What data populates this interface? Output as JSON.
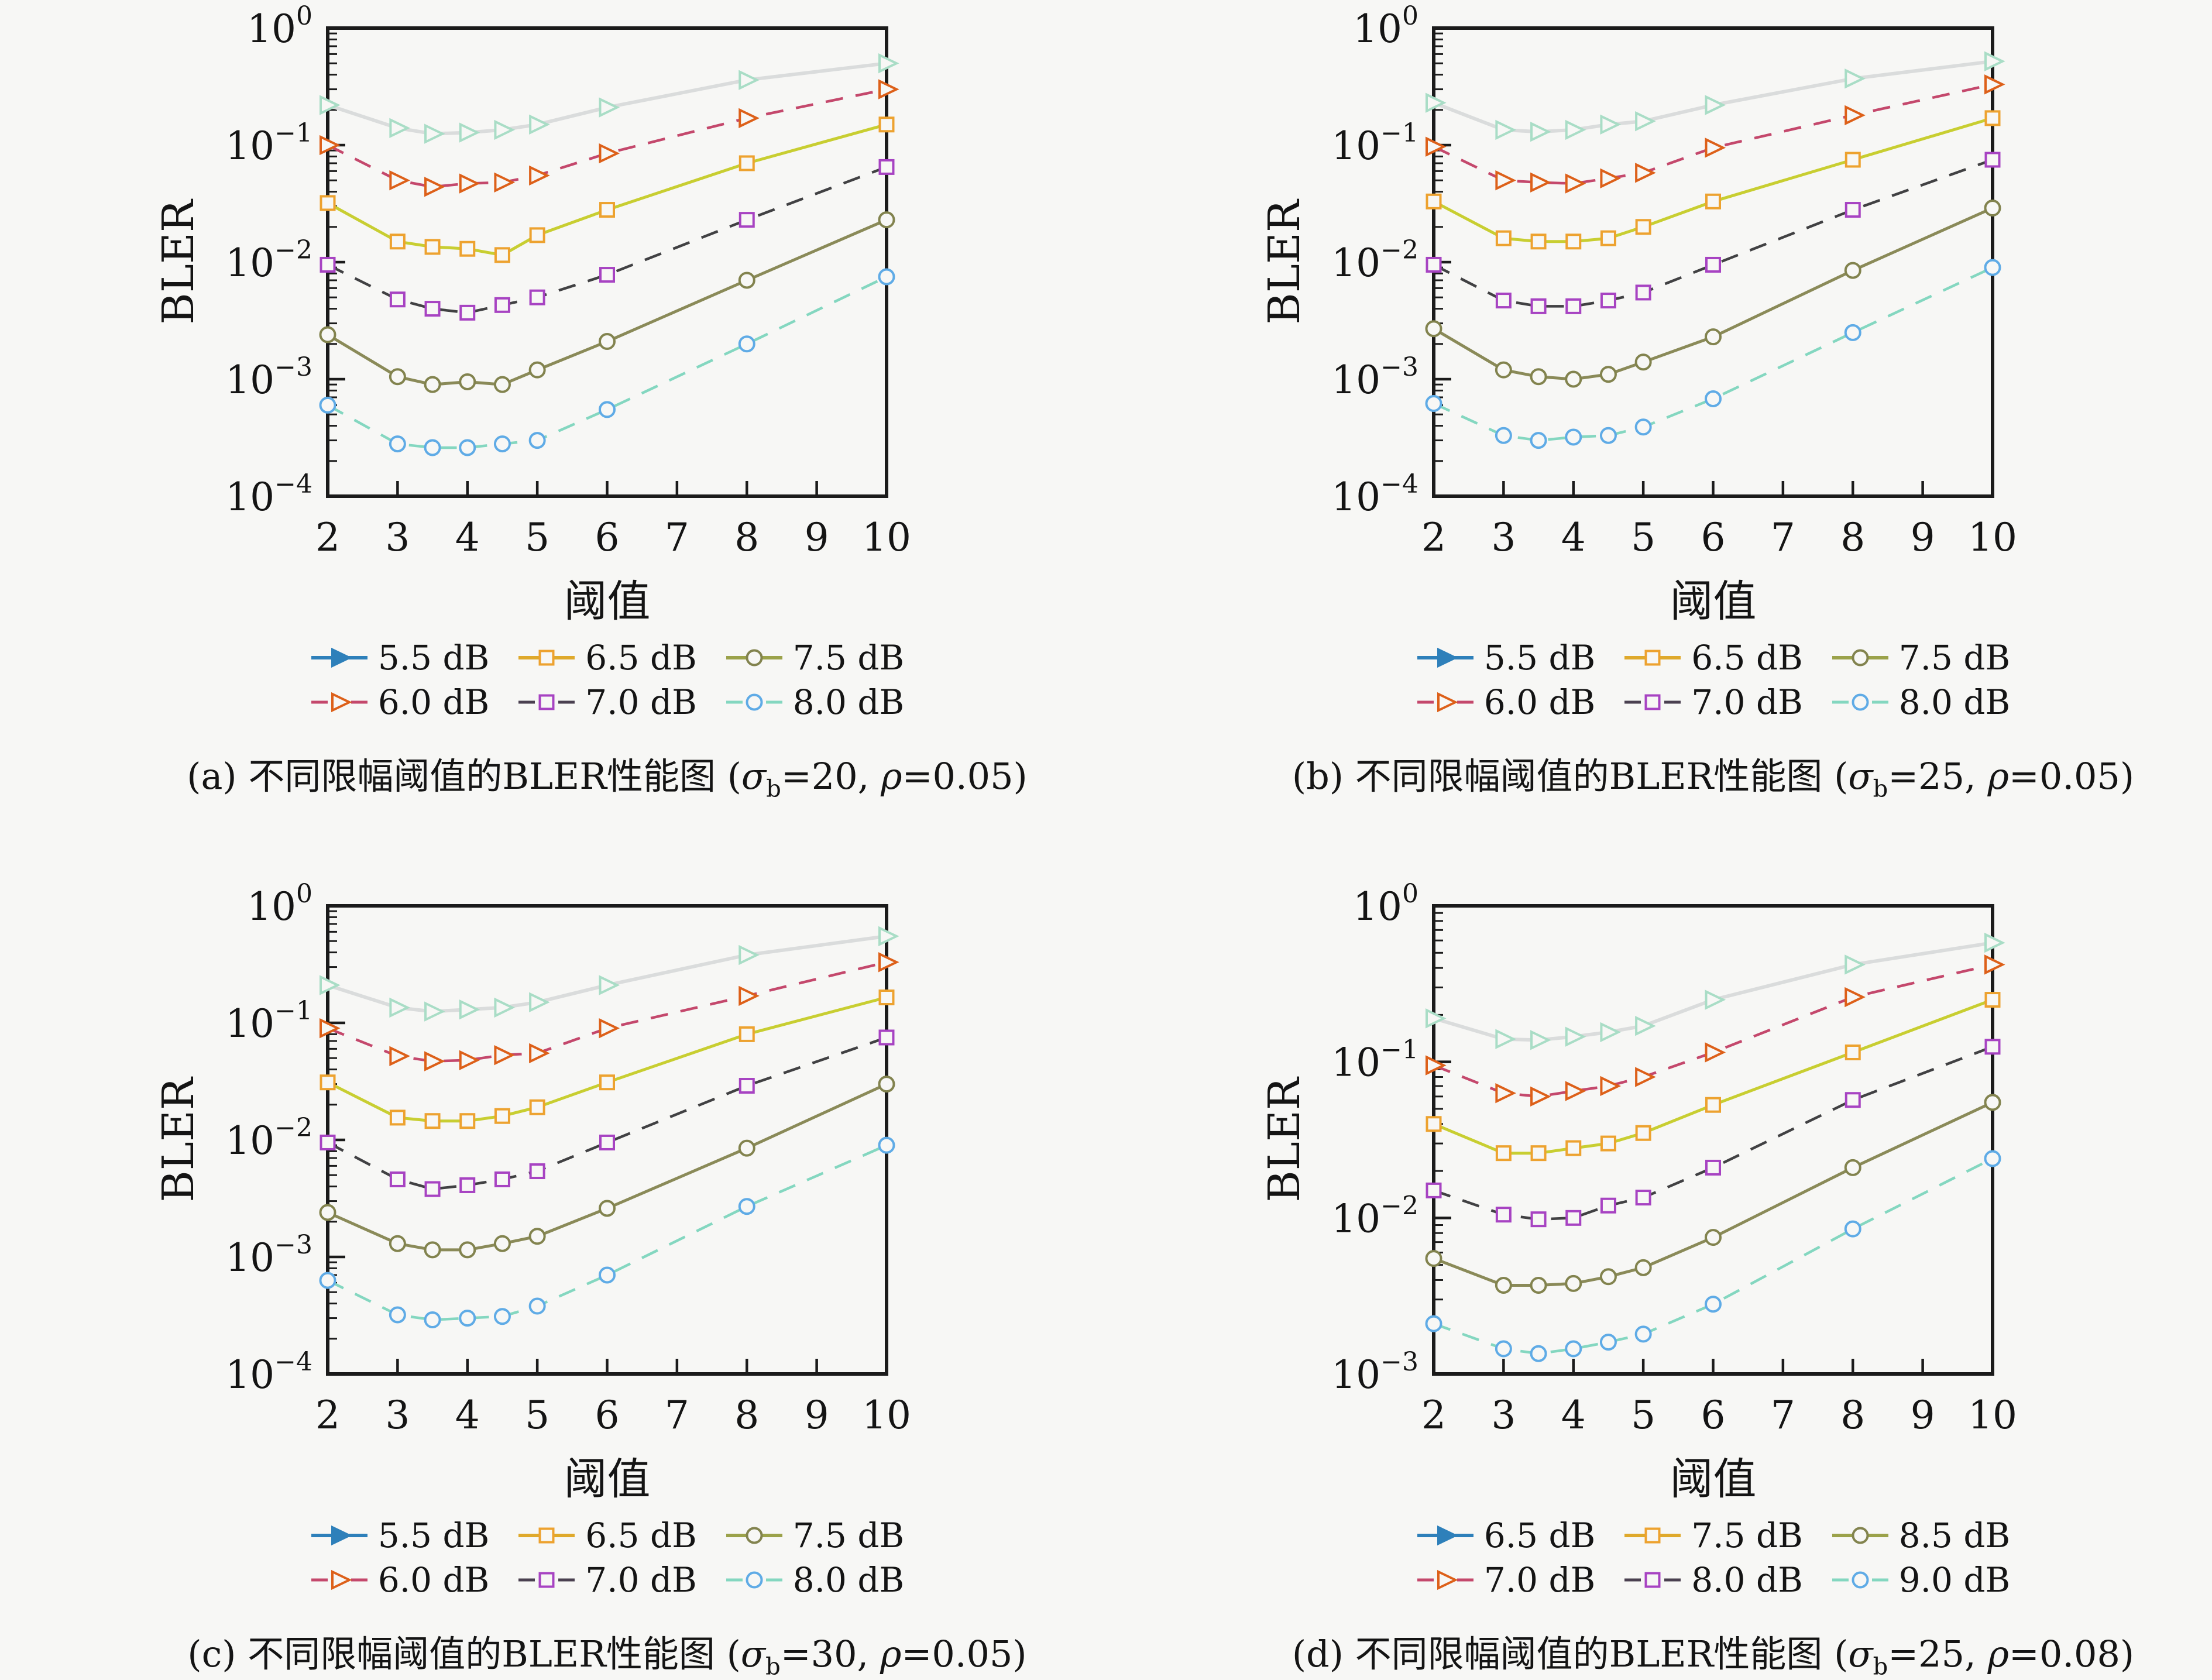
{
  "figure": {
    "background": "#f7f7f5",
    "frame_color": "#1b1b1b",
    "text_color": "#141414"
  },
  "series_styles": {
    "s1": {
      "line_color": "#dadcdc",
      "dashed": false,
      "line_width": 6,
      "marker": "triangle",
      "marker_color": "#a9ddc6",
      "legend_line": "#2e80ba",
      "legend_marker": "#2e80ba",
      "legend_marker_filled": true
    },
    "s2": {
      "line_color": "#c4486c",
      "dashed": true,
      "line_width": 4.5,
      "marker": "triangle",
      "marker_color": "#dd6019",
      "legend_line": "#c4486c",
      "legend_marker": "#dd6019",
      "legend_marker_filled": false
    },
    "s3": {
      "line_color": "#c8ce31",
      "dashed": false,
      "line_width": 5,
      "marker": "square",
      "marker_color": "#eda22f",
      "legend_line": "#dfa92b",
      "legend_marker": "#eda22f",
      "legend_marker_filled": false
    },
    "s4": {
      "line_color": "#414143",
      "dashed": true,
      "line_width": 4.5,
      "marker": "square",
      "marker_color": "#a743c2",
      "legend_line": "#4a4050",
      "legend_marker": "#a743c2",
      "legend_marker_filled": false
    },
    "s5": {
      "line_color": "#8a8a58",
      "dashed": false,
      "line_width": 5,
      "marker": "circle",
      "marker_color": "#82834e",
      "legend_line": "#9ba24a",
      "legend_marker": "#82834e",
      "legend_marker_filled": false
    },
    "s6": {
      "line_color": "#84d7c0",
      "dashed": true,
      "line_width": 4.5,
      "marker": "circle",
      "marker_color": "#5fabe6",
      "legend_line": "#84d7c0",
      "legend_marker": "#5fabe6",
      "legend_marker_filled": false
    }
  },
  "chart_data": [
    {
      "id": "a",
      "type": "line",
      "xlabel": "阈值",
      "ylabel": "BLER",
      "x": [
        2,
        3,
        3.5,
        4,
        4.5,
        5,
        6,
        8,
        10
      ],
      "xticks": [
        2,
        3,
        4,
        5,
        6,
        7,
        8,
        9,
        10
      ],
      "ylim": [
        0.0001,
        1
      ],
      "ytick_exponents": [
        0,
        -1,
        -2,
        -3,
        -4
      ],
      "caption": {
        "index": "(a)",
        "title": "不同限幅阈值的BLER性能图",
        "sigma_sym": "σ",
        "sigma_sub": "b",
        "sigma_val": "20",
        "rho_sym": "ρ",
        "rho_val": "0.05"
      },
      "series": [
        {
          "name": "5.5 dB",
          "style": "s1",
          "values": [
            0.22,
            0.14,
            0.125,
            0.128,
            0.135,
            0.15,
            0.21,
            0.36,
            0.5
          ]
        },
        {
          "name": "6.0 dB",
          "style": "s2",
          "values": [
            0.1,
            0.05,
            0.044,
            0.047,
            0.048,
            0.055,
            0.085,
            0.17,
            0.3
          ]
        },
        {
          "name": "6.5 dB",
          "style": "s3",
          "values": [
            0.032,
            0.015,
            0.0135,
            0.013,
            0.0115,
            0.017,
            0.028,
            0.07,
            0.15
          ]
        },
        {
          "name": "7.0 dB",
          "style": "s4",
          "values": [
            0.0095,
            0.0048,
            0.004,
            0.0037,
            0.0043,
            0.005,
            0.0078,
            0.023,
            0.065
          ]
        },
        {
          "name": "7.5 dB",
          "style": "s5",
          "values": [
            0.0024,
            0.00105,
            0.0009,
            0.00095,
            0.0009,
            0.0012,
            0.0021,
            0.007,
            0.023
          ]
        },
        {
          "name": "8.0 dB",
          "style": "s6",
          "values": [
            0.0006,
            0.00028,
            0.00026,
            0.00026,
            0.00028,
            0.0003,
            0.00055,
            0.002,
            0.0075
          ]
        }
      ]
    },
    {
      "id": "b",
      "type": "line",
      "xlabel": "阈值",
      "ylabel": "BLER",
      "x": [
        2,
        3,
        3.5,
        4,
        4.5,
        5,
        6,
        8,
        10
      ],
      "xticks": [
        2,
        3,
        4,
        5,
        6,
        7,
        8,
        9,
        10
      ],
      "ylim": [
        0.0001,
        1
      ],
      "ytick_exponents": [
        0,
        -1,
        -2,
        -3,
        -4
      ],
      "caption": {
        "index": "(b)",
        "title": "不同限幅阈值的BLER性能图",
        "sigma_sym": "σ",
        "sigma_sub": "b",
        "sigma_val": "25",
        "rho_sym": "ρ",
        "rho_val": "0.05"
      },
      "series": [
        {
          "name": "5.5 dB",
          "style": "s1",
          "values": [
            0.23,
            0.135,
            0.13,
            0.135,
            0.15,
            0.16,
            0.22,
            0.37,
            0.52
          ]
        },
        {
          "name": "6.0 dB",
          "style": "s2",
          "values": [
            0.097,
            0.05,
            0.048,
            0.047,
            0.052,
            0.058,
            0.095,
            0.18,
            0.33
          ]
        },
        {
          "name": "6.5 dB",
          "style": "s3",
          "values": [
            0.033,
            0.016,
            0.015,
            0.015,
            0.016,
            0.02,
            0.033,
            0.075,
            0.17
          ]
        },
        {
          "name": "7.0 dB",
          "style": "s4",
          "values": [
            0.0095,
            0.0047,
            0.0042,
            0.0042,
            0.0047,
            0.0055,
            0.0095,
            0.028,
            0.075
          ]
        },
        {
          "name": "7.5 dB",
          "style": "s5",
          "values": [
            0.0027,
            0.0012,
            0.00105,
            0.001,
            0.0011,
            0.0014,
            0.0023,
            0.0085,
            0.029
          ]
        },
        {
          "name": "8.0 dB",
          "style": "s6",
          "values": [
            0.00062,
            0.00033,
            0.0003,
            0.00032,
            0.00033,
            0.00039,
            0.00068,
            0.0025,
            0.009
          ]
        }
      ]
    },
    {
      "id": "c",
      "type": "line",
      "xlabel": "阈值",
      "ylabel": "BLER",
      "x": [
        2,
        3,
        3.5,
        4,
        4.5,
        5,
        6,
        8,
        10
      ],
      "xticks": [
        2,
        3,
        4,
        5,
        6,
        7,
        8,
        9,
        10
      ],
      "ylim": [
        0.0001,
        1
      ],
      "ytick_exponents": [
        0,
        -1,
        -2,
        -3,
        -4
      ],
      "caption": {
        "index": "(c)",
        "title": "不同限幅阈值的BLER性能图",
        "sigma_sym": "σ",
        "sigma_sub": "b",
        "sigma_val": "30",
        "rho_sym": "ρ",
        "rho_val": "0.05"
      },
      "series": [
        {
          "name": "5.5 dB",
          "style": "s1",
          "values": [
            0.21,
            0.135,
            0.125,
            0.13,
            0.135,
            0.15,
            0.21,
            0.38,
            0.55
          ]
        },
        {
          "name": "6.0 dB",
          "style": "s2",
          "values": [
            0.09,
            0.052,
            0.047,
            0.048,
            0.053,
            0.055,
            0.09,
            0.17,
            0.33
          ]
        },
        {
          "name": "6.5 dB",
          "style": "s3",
          "values": [
            0.031,
            0.0155,
            0.0145,
            0.0145,
            0.016,
            0.019,
            0.031,
            0.08,
            0.165
          ]
        },
        {
          "name": "7.0 dB",
          "style": "s4",
          "values": [
            0.0095,
            0.0046,
            0.0038,
            0.0041,
            0.0046,
            0.0054,
            0.0095,
            0.029,
            0.075
          ]
        },
        {
          "name": "7.5 dB",
          "style": "s5",
          "values": [
            0.0024,
            0.0013,
            0.00115,
            0.00115,
            0.0013,
            0.0015,
            0.0026,
            0.0085,
            0.03
          ]
        },
        {
          "name": "8.0 dB",
          "style": "s6",
          "values": [
            0.00063,
            0.00032,
            0.00029,
            0.0003,
            0.00031,
            0.00038,
            0.0007,
            0.0027,
            0.009
          ]
        }
      ]
    },
    {
      "id": "d",
      "type": "line",
      "xlabel": "阈值",
      "ylabel": "BLER",
      "x": [
        2,
        3,
        3.5,
        4,
        4.5,
        5,
        6,
        8,
        10
      ],
      "xticks": [
        2,
        3,
        4,
        5,
        6,
        7,
        8,
        9,
        10
      ],
      "ylim": [
        0.001,
        1
      ],
      "ytick_exponents": [
        0,
        -1,
        -2,
        -3
      ],
      "caption": {
        "index": "(d)",
        "title": "不同限幅阈值的BLER性能图",
        "sigma_sym": "σ",
        "sigma_sub": "b",
        "sigma_val": "25",
        "rho_sym": "ρ",
        "rho_val": "0.08"
      },
      "series": [
        {
          "name": "6.5 dB",
          "style": "s1",
          "values": [
            0.19,
            0.14,
            0.138,
            0.145,
            0.155,
            0.17,
            0.25,
            0.42,
            0.58
          ]
        },
        {
          "name": "7.0 dB",
          "style": "s2",
          "values": [
            0.095,
            0.063,
            0.06,
            0.065,
            0.07,
            0.08,
            0.115,
            0.26,
            0.42
          ]
        },
        {
          "name": "7.5 dB",
          "style": "s3",
          "values": [
            0.04,
            0.026,
            0.026,
            0.028,
            0.03,
            0.035,
            0.053,
            0.115,
            0.25
          ]
        },
        {
          "name": "8.0 dB",
          "style": "s4",
          "values": [
            0.015,
            0.0105,
            0.0098,
            0.01,
            0.012,
            0.0135,
            0.021,
            0.057,
            0.125
          ]
        },
        {
          "name": "8.5 dB",
          "style": "s5",
          "values": [
            0.0055,
            0.0037,
            0.0037,
            0.0038,
            0.0042,
            0.0048,
            0.0075,
            0.021,
            0.055
          ]
        },
        {
          "name": "9.0 dB",
          "style": "s6",
          "values": [
            0.0021,
            0.00145,
            0.00135,
            0.00145,
            0.0016,
            0.0018,
            0.0028,
            0.0085,
            0.024
          ]
        }
      ]
    }
  ]
}
